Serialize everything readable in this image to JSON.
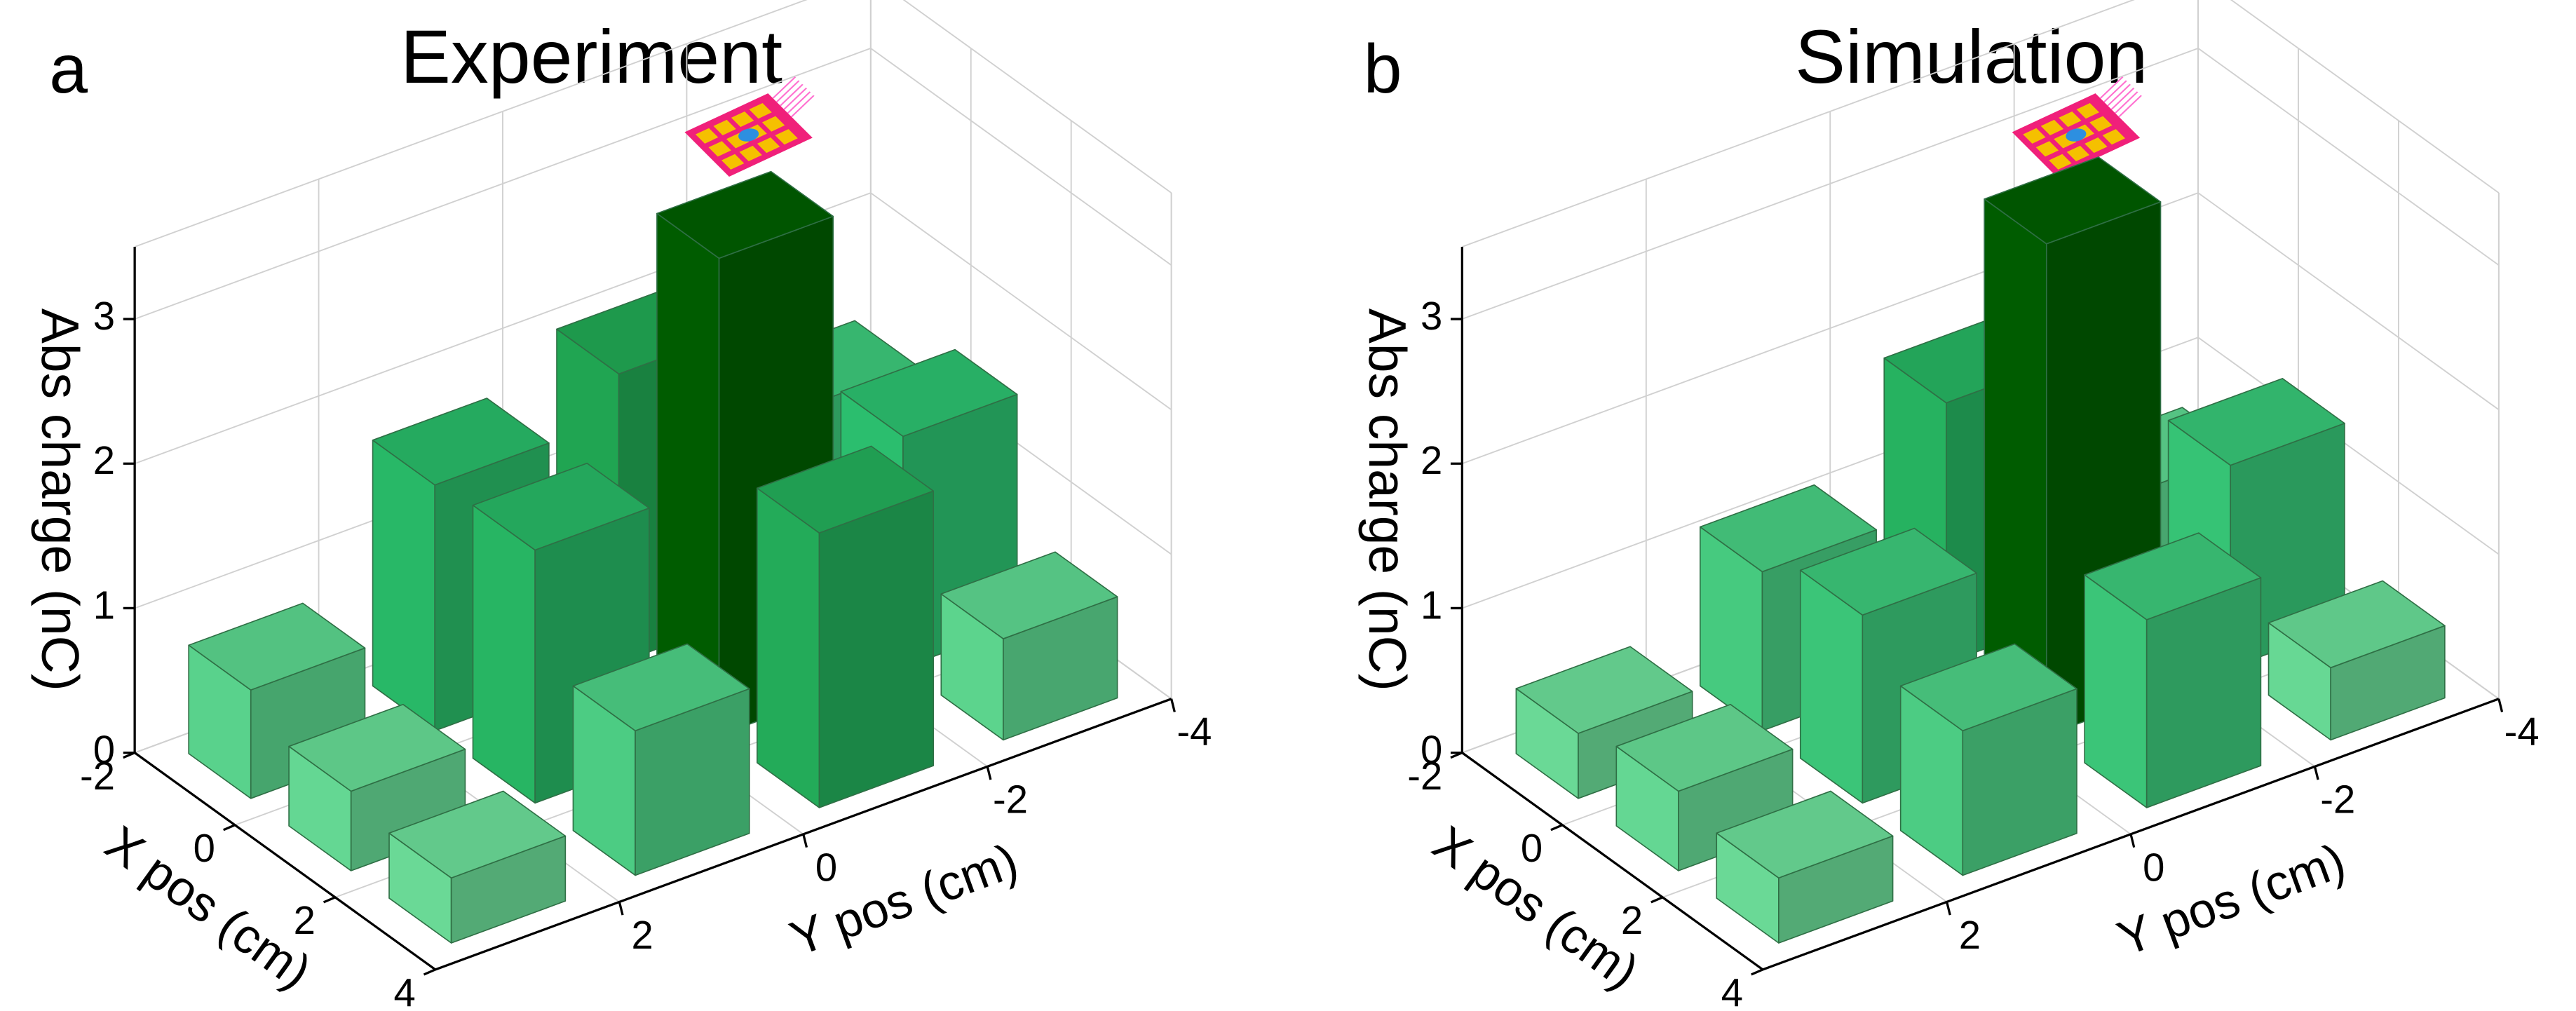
{
  "chart_data": [
    {
      "type": "bar3d",
      "panel_label": "a",
      "title": "Experiment",
      "xlabel": "X pos (cm)",
      "ylabel": "Y pos (cm)",
      "zlabel": "Abs charge (nC)",
      "x": [
        -1,
        1,
        3
      ],
      "y": [
        3,
        1,
        -1,
        -3
      ],
      "values": [
        [
          0.75,
          1.7,
          2.0,
          1.3
        ],
        [
          0.55,
          1.75,
          3.3,
          1.6
        ],
        [
          0.45,
          1.0,
          1.9,
          0.7
        ]
      ],
      "xlim": [
        -2,
        4
      ],
      "xticks": [
        -2,
        0,
        2,
        4
      ],
      "ylim": [
        -4,
        4
      ],
      "yticks": [
        -4,
        -2,
        0,
        2
      ],
      "zlim": [
        0,
        3.5
      ],
      "zticks": [
        0,
        1,
        2,
        3
      ],
      "colormap": [
        "#8ef8b4",
        "#2fcf78",
        "#006400"
      ],
      "grid": true
    },
    {
      "type": "bar3d",
      "panel_label": "b",
      "title": "Simulation",
      "xlabel": "X pos (cm)",
      "ylabel": "Y pos (cm)",
      "zlabel": "Abs charge (nC)",
      "x": [
        -1,
        1,
        3
      ],
      "y": [
        3,
        1,
        -1,
        -3
      ],
      "values": [
        [
          0.45,
          1.1,
          1.8,
          0.7
        ],
        [
          0.55,
          1.3,
          3.4,
          1.4
        ],
        [
          0.45,
          1.0,
          1.3,
          0.5
        ]
      ],
      "xlim": [
        -2,
        4
      ],
      "xticks": [
        -2,
        0,
        2,
        4
      ],
      "ylim": [
        -4,
        4
      ],
      "yticks": [
        -4,
        -2,
        0,
        2
      ],
      "zlim": [
        0,
        3.5
      ],
      "zticks": [
        0,
        1,
        2,
        3
      ],
      "colormap": [
        "#8ef8b4",
        "#2fcf78",
        "#006400"
      ],
      "grid": true
    }
  ]
}
